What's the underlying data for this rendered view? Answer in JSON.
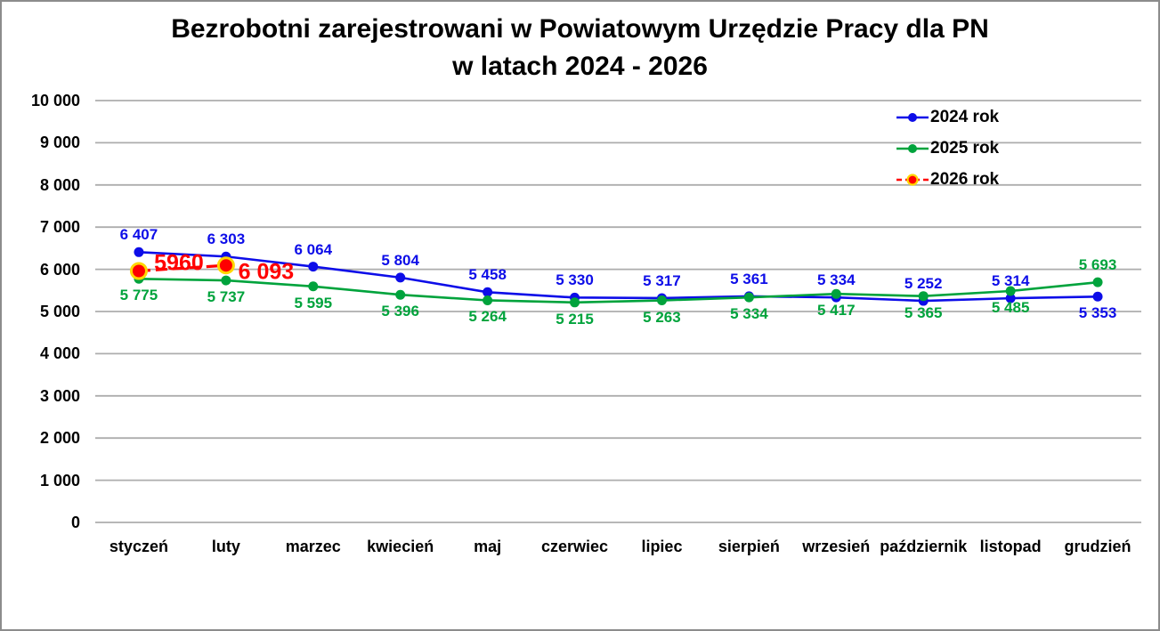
{
  "chart_data": {
    "type": "line",
    "title": "Bezrobotni zarejestrowani w Powiatowym Urzędzie Pracy dla PN w latach 2024 - 2026",
    "title_lines": [
      "Bezrobotni zarejestrowani w Powiatowym Urzędzie Pracy dla PN",
      "w latach 2024 - 2026"
    ],
    "categories": [
      "styczeń",
      "luty",
      "marzec",
      "kwiecień",
      "maj",
      "czerwiec",
      "lipiec",
      "sierpień",
      "wrzesień",
      "październik",
      "listopad",
      "grudzień"
    ],
    "xlabel": "",
    "ylabel": "",
    "ylim": [
      0,
      10000
    ],
    "ytick_step": 1000,
    "ytick_labels": [
      "0",
      "1 000",
      "2 000",
      "3 000",
      "4 000",
      "5 000",
      "6 000",
      "7 000",
      "8 000",
      "9 000",
      "10 000"
    ],
    "grid": true,
    "gridline_color": "#ADADAD",
    "legend_position": "top-right-inside",
    "series": [
      {
        "name": "2024 rok",
        "color": "#0D0DE8",
        "line_style": "solid",
        "values": [
          6407,
          6303,
          6064,
          5804,
          5458,
          5330,
          5317,
          5361,
          5334,
          5252,
          5314,
          5353
        ],
        "labels": [
          "6 407",
          "6 303",
          "6 064",
          "5 804",
          "5 458",
          "5 330",
          "5 317",
          "5 361",
          "5 334",
          "5 252",
          "5 314",
          "5 353"
        ],
        "label_pos": [
          "above",
          "above",
          "above",
          "above",
          "above",
          "above",
          "above",
          "above",
          "above",
          "above",
          "above",
          "below"
        ]
      },
      {
        "name": "2025 rok",
        "color": "#00A33C",
        "line_style": "solid",
        "values": [
          5775,
          5737,
          5595,
          5396,
          5264,
          5215,
          5263,
          5334,
          5417,
          5365,
          5485,
          5693
        ],
        "labels": [
          "5 775",
          "5 737",
          "5 595",
          "5 396",
          "5 264",
          "5 215",
          "5 263",
          "5 334",
          "5 417",
          "5 365",
          "5 485",
          "5 693"
        ],
        "label_pos": [
          "below",
          "below",
          "below",
          "below",
          "below",
          "below",
          "below",
          "below",
          "below",
          "below",
          "below",
          "above"
        ]
      },
      {
        "name": "2026 rok",
        "color": "#FF0000",
        "marker_ring_color": "#FFD700",
        "line_style": "dashed",
        "label_size": "large",
        "values": [
          5960,
          6093,
          null,
          null,
          null,
          null,
          null,
          null,
          null,
          null,
          null,
          null
        ],
        "labels": [
          "5960",
          "6 093",
          null,
          null,
          null,
          null,
          null,
          null,
          null,
          null,
          null,
          null
        ],
        "label_pos": [
          "right-above",
          "right-below",
          null,
          null,
          null,
          null,
          null,
          null,
          null,
          null,
          null,
          null
        ]
      }
    ]
  }
}
